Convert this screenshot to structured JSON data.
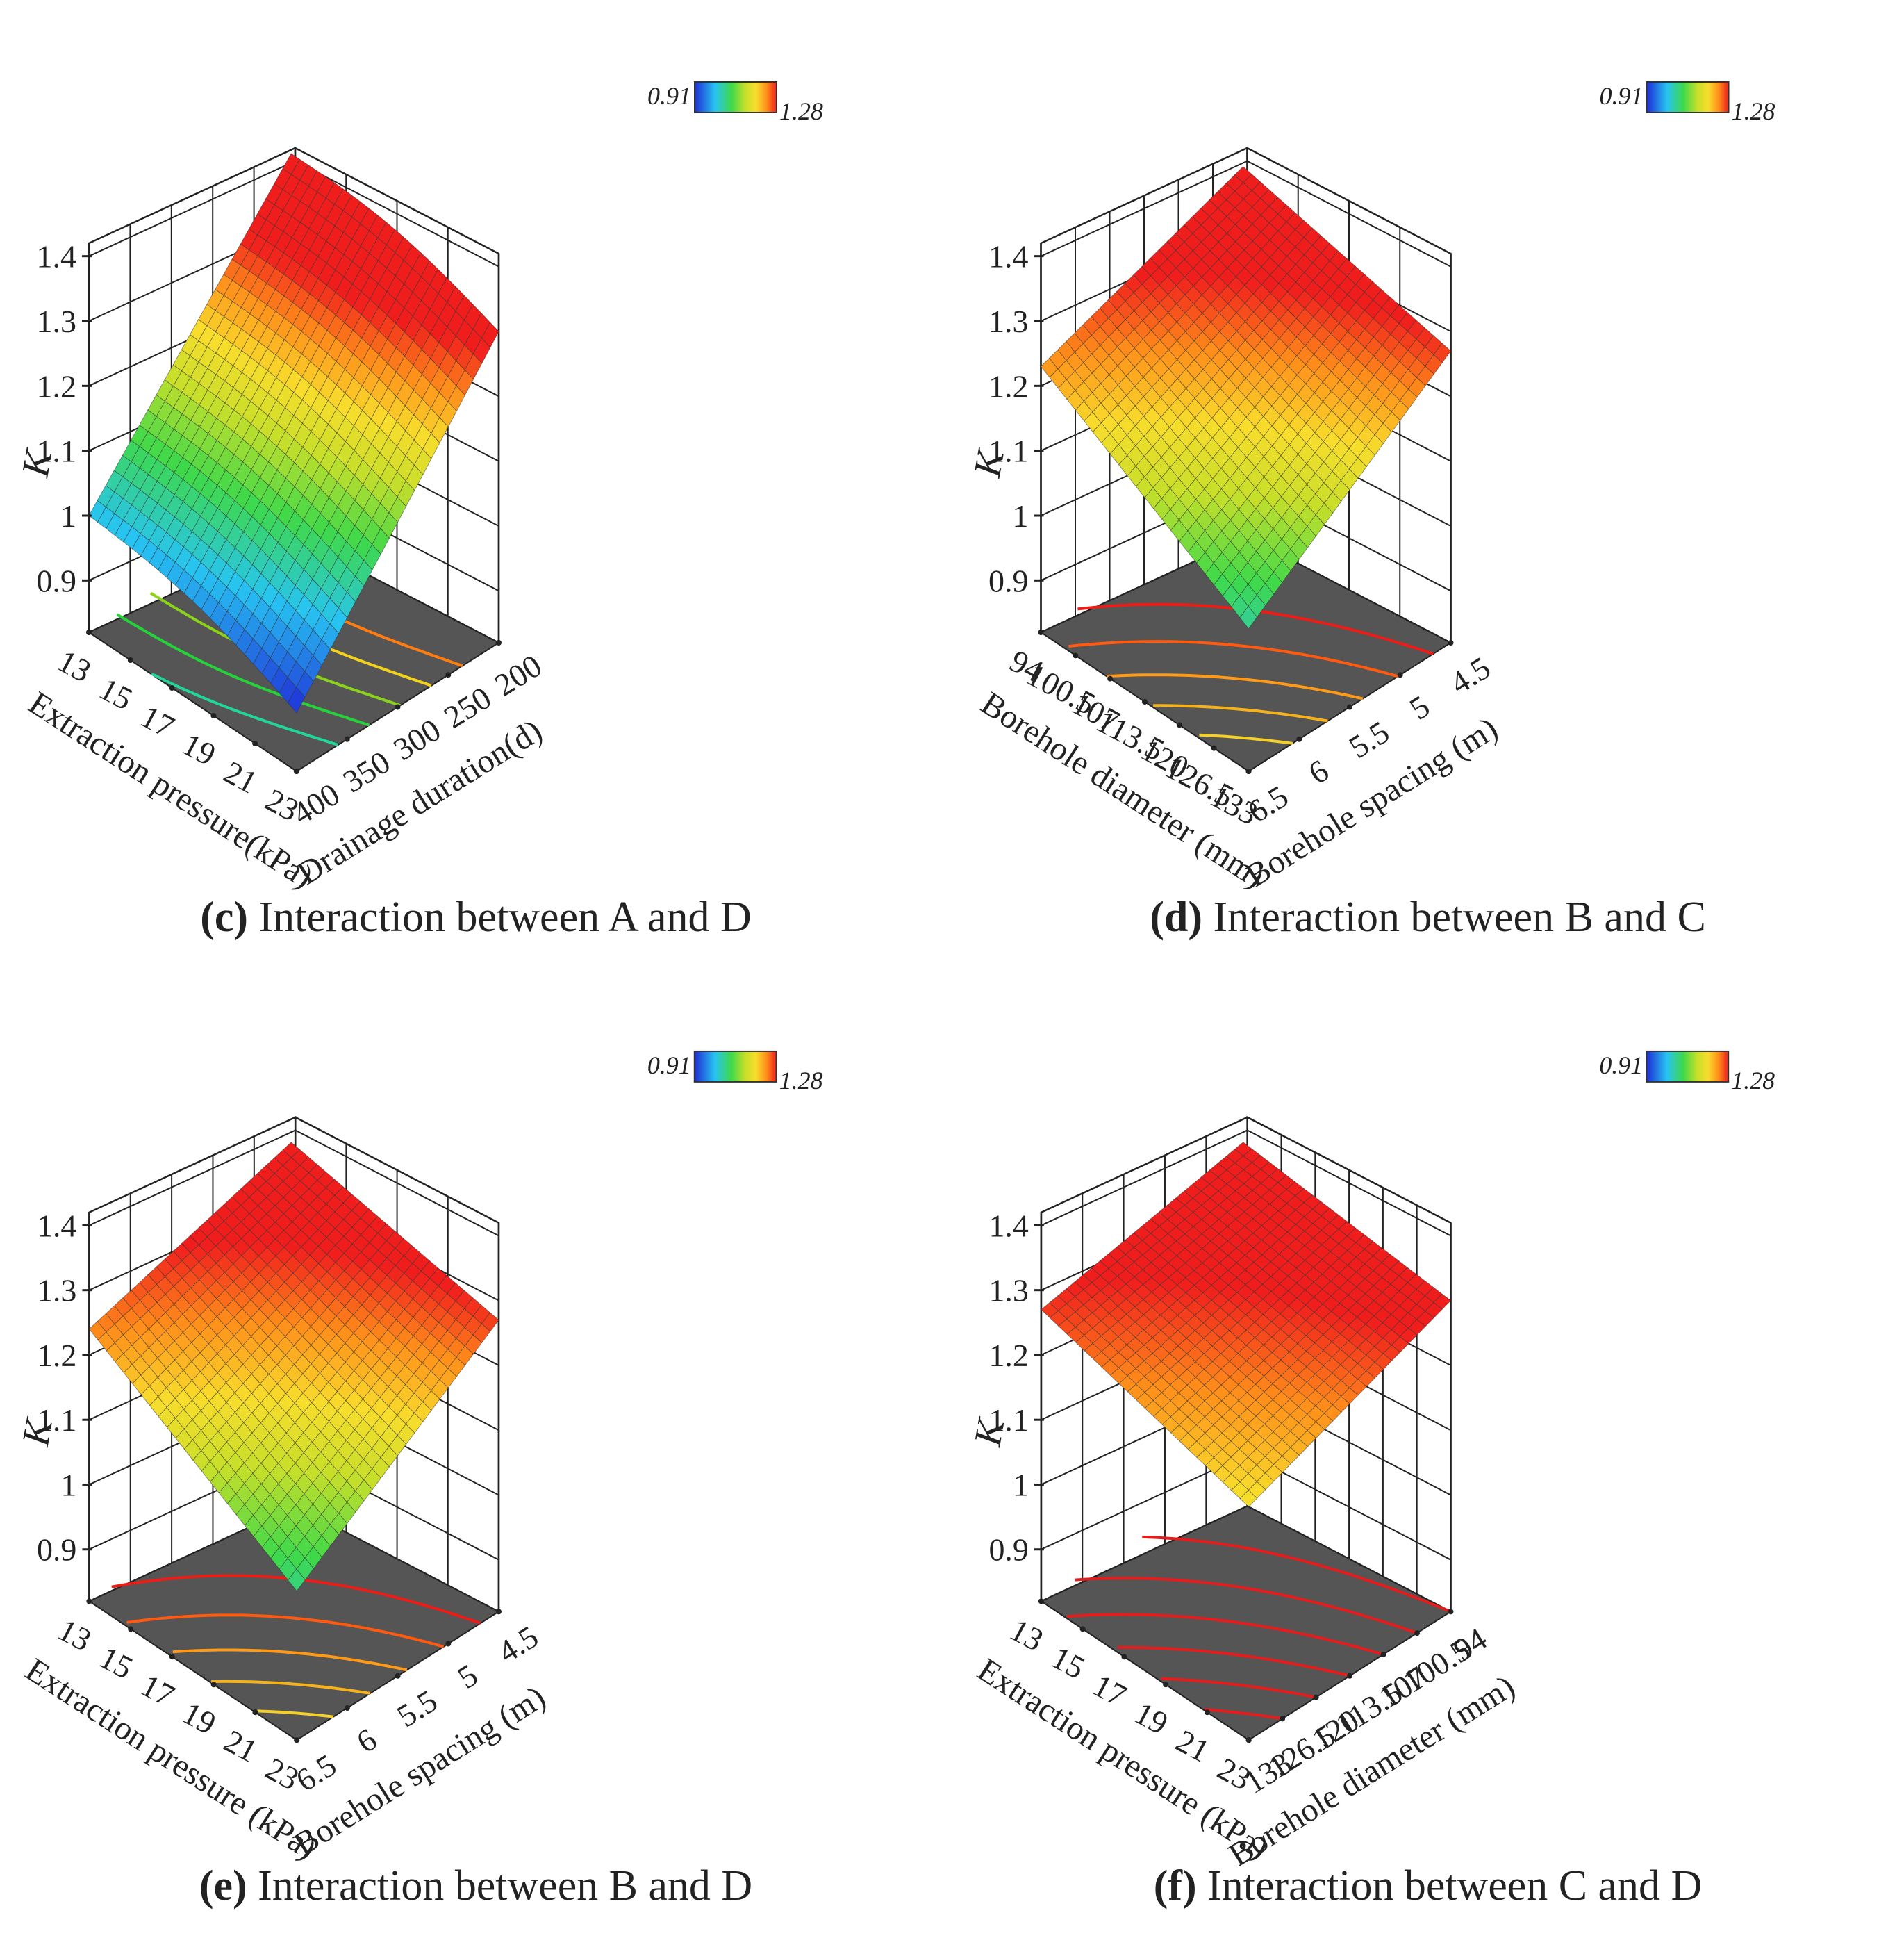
{
  "colorbar": {
    "min": "0.91",
    "max": "1.28"
  },
  "z_axis": {
    "label": "K",
    "ticks": [
      "0.9",
      "1",
      "1.1",
      "1.2",
      "1.3",
      "1.4"
    ],
    "range": [
      0.82,
      1.42
    ]
  },
  "chart_data": [
    {
      "type": "surface",
      "title": "Interaction between A and D",
      "caption_letter": "(c)",
      "caption_text": " Interaction between A and D",
      "x_axis": {
        "label": "Extraction pressure(kPa)",
        "ticks": [
          "13",
          "15",
          "17",
          "19",
          "21",
          "23"
        ],
        "range": [
          13,
          23
        ]
      },
      "y_axis": {
        "label": "Drainage duration(d)",
        "ticks": [
          "400",
          "350",
          "300",
          "250",
          "200"
        ],
        "range": [
          400,
          200
        ]
      },
      "zlabel": "K",
      "z_corners": {
        "near_left": 1.0,
        "front": 0.91,
        "right": 1.3,
        "back": 1.36
      },
      "contour_levels": [
        0.99,
        1.05,
        1.11,
        1.17,
        1.23
      ],
      "contour_colors": [
        "#21d69a",
        "#25d23a",
        "#8bd21a",
        "#f2d11e",
        "#ff7d10"
      ]
    },
    {
      "type": "surface",
      "title": "Interaction between B and C",
      "caption_letter": "(d)",
      "caption_text": " Interaction between B and C",
      "x_axis": {
        "label": "Borehole diameter (mm)",
        "ticks": [
          "94",
          "100.5",
          "107",
          "113.5",
          "120",
          "126.5",
          "133"
        ],
        "range": [
          94,
          133
        ]
      },
      "y_axis": {
        "label": "Borehole spacing (m)",
        "ticks": [
          "6.5",
          "6",
          "5.5",
          "5",
          "4.5"
        ],
        "range": [
          6.5,
          4.5
        ]
      },
      "zlabel": "K",
      "z_corners": {
        "near_left": 1.23,
        "front": 1.04,
        "right": 1.27,
        "back": 1.34
      },
      "contour_levels": [
        1.09,
        1.13,
        1.17,
        1.21,
        1.25
      ],
      "contour_colors": [
        "#f3d02a",
        "#f6b21d",
        "#ff9a16",
        "#ff5a10",
        "#ee1c16"
      ]
    },
    {
      "type": "surface",
      "title": "Interaction between B and D",
      "caption_letter": "(e)",
      "caption_text": " Interaction between B and D",
      "x_axis": {
        "label": "Extraction pressure (kPa)",
        "ticks": [
          "13",
          "15",
          "17",
          "19",
          "21",
          "23"
        ],
        "range": [
          13,
          23
        ]
      },
      "y_axis": {
        "label": "Borehole spacing (m)",
        "ticks": [
          "6.5",
          "6",
          "5.5",
          "5",
          "4.5"
        ],
        "range": [
          6.5,
          4.5
        ]
      },
      "zlabel": "K",
      "z_corners": {
        "near_left": 1.24,
        "front": 1.05,
        "right": 1.27,
        "back": 1.33
      },
      "contour_levels": [
        1.09,
        1.13,
        1.17,
        1.21,
        1.25
      ],
      "contour_colors": [
        "#f3d02a",
        "#f6b21d",
        "#ff9a16",
        "#ff5a10",
        "#ee1c16"
      ]
    },
    {
      "type": "surface",
      "title": "Interaction between C and D",
      "caption_letter": "(f)",
      "caption_text": " Interaction between C and D",
      "x_axis": {
        "label": "Extraction pressure (kPa)",
        "ticks": [
          "13",
          "15",
          "17",
          "19",
          "21",
          "23"
        ],
        "range": [
          13,
          23
        ]
      },
      "y_axis": {
        "label": "Borehole diameter (mm)",
        "ticks": [
          "133",
          "126.5",
          "120",
          "113.5",
          "107",
          "100.5",
          "94"
        ],
        "range": [
          133,
          94
        ]
      },
      "zlabel": "K",
      "z_corners": {
        "near_left": 1.27,
        "front": 1.18,
        "right": 1.3,
        "back": 1.33
      },
      "contour_levels": [
        1.2,
        1.22,
        1.24,
        1.26,
        1.28,
        1.3
      ],
      "contour_colors": [
        "#e61c1c",
        "#e61c1c",
        "#e61c1c",
        "#e61c1c",
        "#e61c1c",
        "#e61c1c"
      ]
    }
  ]
}
